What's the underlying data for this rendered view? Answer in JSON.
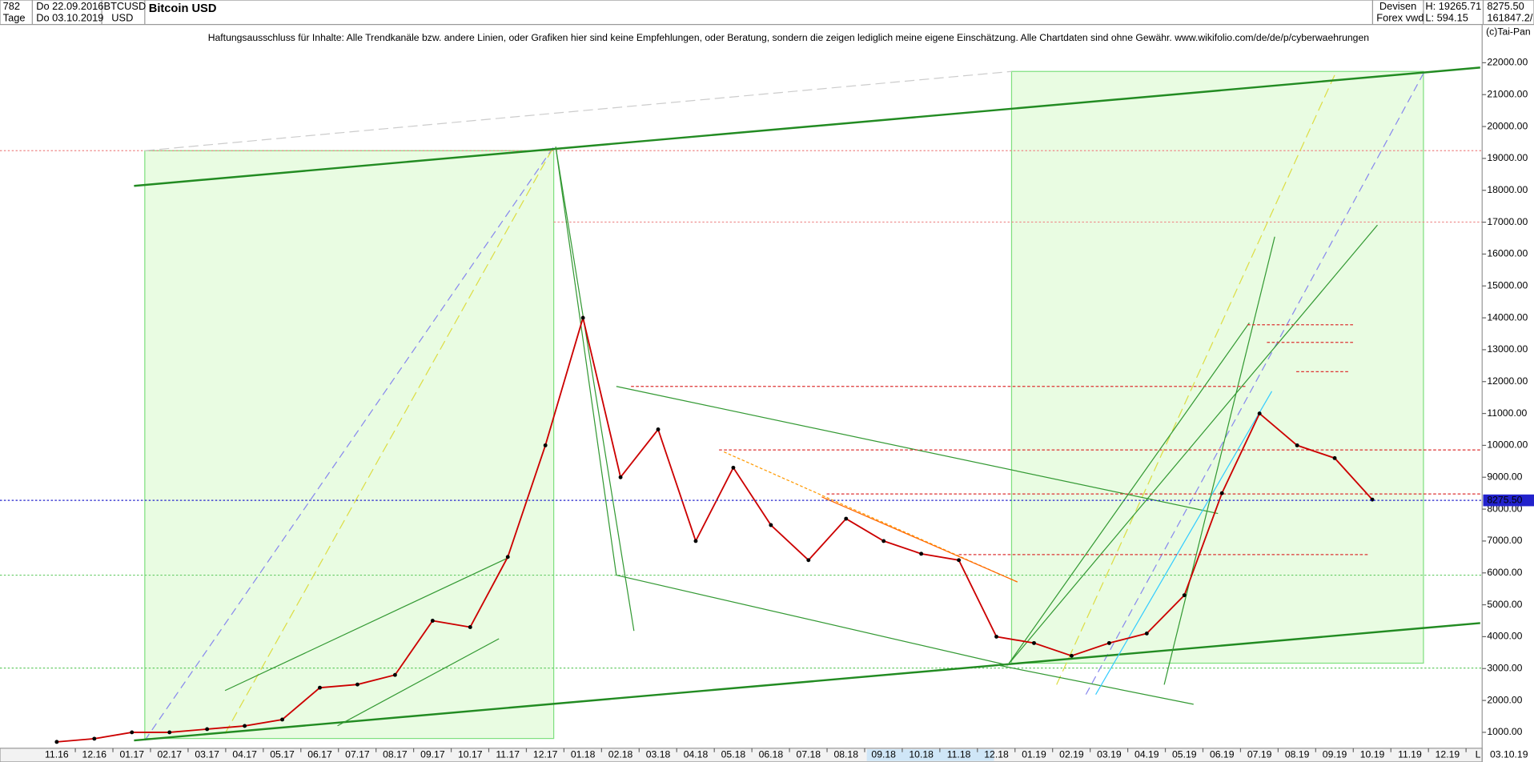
{
  "header": {
    "count": "782",
    "start_date": "Do 22.09.2016",
    "symbol": "BTCUSD",
    "name": "Bitcoin USD",
    "period": "Tage",
    "end_date": "Do 03.10.2019",
    "currency": "USD",
    "market": "Devisen",
    "source": "Forex vwd",
    "high": "H: 19265.71",
    "low": "L: 594.15",
    "last": "8275.50",
    "volume": "161847.2/",
    "copyright": "(c)Tai-Pan",
    "disclaimer": "Haftungsausschluss für Inhalte: Alle Trendkanäle bzw. andere Linien, oder Grafiken hier sind keine Empfehlungen, oder Beratung, sondern die zeigen lediglich meine eigene Einschätzung. Alle Chartdaten sind ohne Gewähr.  www.wikifolio.com/de/de/p/cyberwaehrungen",
    "footer_date": "03.10.19",
    "footer_scale": "L"
  },
  "chart_data": {
    "type": "line",
    "categories": [
      "11.16",
      "12.16",
      "01.17",
      "02.17",
      "03.17",
      "04.17",
      "05.17",
      "06.17",
      "07.17",
      "08.17",
      "09.17",
      "10.17",
      "11.17",
      "12.17",
      "01.18",
      "02.18",
      "03.18",
      "04.18",
      "05.18",
      "06.18",
      "07.18",
      "08.18",
      "09.18",
      "10.18",
      "11.18",
      "12.18",
      "01.19",
      "02.19",
      "03.19",
      "04.19",
      "05.19",
      "06.19",
      "07.19",
      "08.19",
      "09.19",
      "10.19",
      "11.19",
      "12.19"
    ],
    "values": [
      700,
      800,
      1000,
      1000,
      1100,
      1200,
      1400,
      2400,
      2500,
      2800,
      4500,
      4300,
      6500,
      10000,
      14000,
      9000,
      10500,
      7000,
      9300,
      7500,
      6400,
      7700,
      7000,
      6600,
      6400,
      4000,
      3800,
      3400,
      3800,
      4100,
      5300,
      8500,
      11000,
      10000,
      9600,
      8300,
      null,
      null
    ],
    "color": "#cc0000",
    "ylim": [
      500,
      23200
    ],
    "yticks": [
      {
        "value": 1000,
        "label": "1000.00"
      },
      {
        "value": 2000,
        "label": "2000.00"
      },
      {
        "value": 3000,
        "label": "3000.00"
      },
      {
        "value": 4000,
        "label": "4000.00"
      },
      {
        "value": 5000,
        "label": "5000.00"
      },
      {
        "value": 6000,
        "label": "6000.00"
      },
      {
        "value": 7000,
        "label": "7000.00"
      },
      {
        "value": 8000,
        "label": "8000.00"
      },
      {
        "value": 9000,
        "label": "9000.00"
      },
      {
        "value": 10000,
        "label": "10000.00"
      },
      {
        "value": 11000,
        "label": "11000.00"
      },
      {
        "value": 12000,
        "label": "12000.00"
      },
      {
        "value": 13000,
        "label": "13000.00"
      },
      {
        "value": 14000,
        "label": "14000.00"
      },
      {
        "value": 15000,
        "label": "15000.00"
      },
      {
        "value": 16000,
        "label": "16000.00"
      },
      {
        "value": 17000,
        "label": "17000.00"
      },
      {
        "value": 18000,
        "label": "18000.00"
      },
      {
        "value": 19000,
        "label": "19000.00"
      },
      {
        "value": 20000,
        "label": "20000.00"
      },
      {
        "value": 21000,
        "label": "21000.00"
      },
      {
        "value": 22000,
        "label": "22000.00"
      }
    ],
    "last_price": {
      "value": 8275.5,
      "label": "8275.50"
    },
    "last_price_color": "#2222cc"
  }
}
